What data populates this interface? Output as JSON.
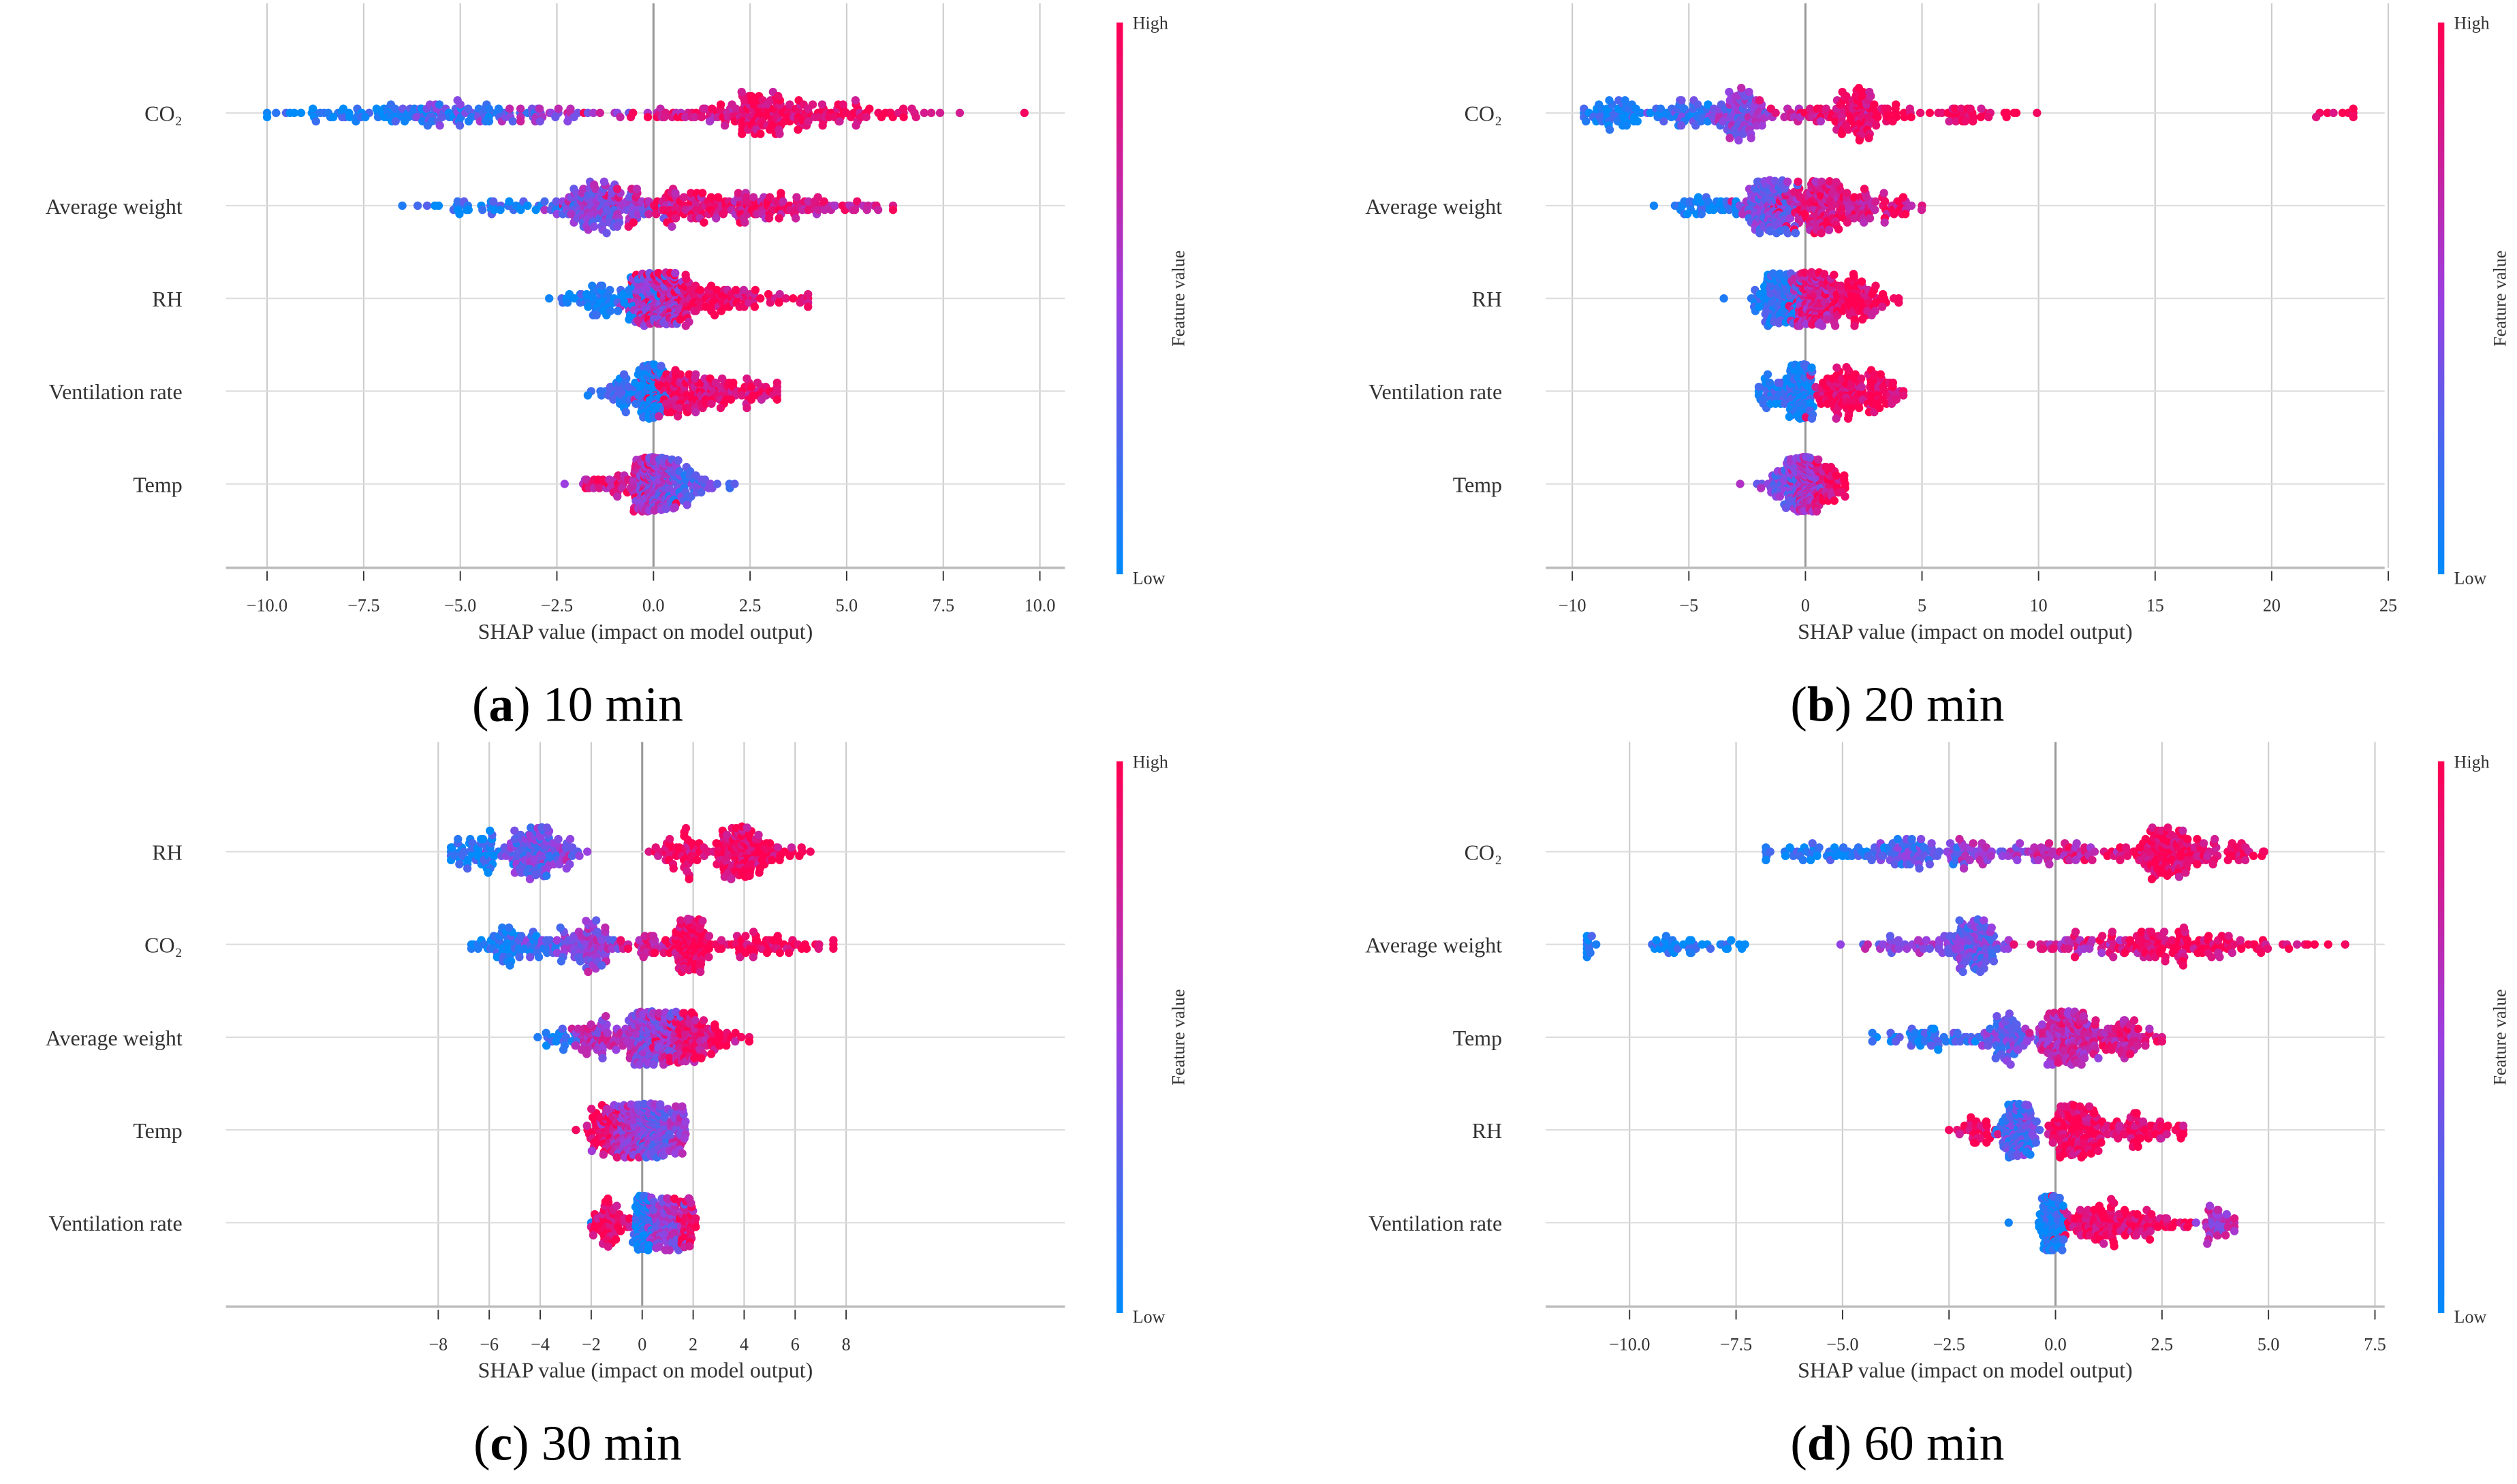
{
  "colors": {
    "low": "#008bfb",
    "mid": "#9b3fe0",
    "high": "#ff0052",
    "grid": "#cccccc",
    "axis": "#bbbbbb"
  },
  "chart_data": [
    {
      "type": "scatter",
      "subtype": "shap-beeswarm",
      "panel": "a",
      "caption_rest": "10 min",
      "xlabel": "SHAP value (impact on model output)",
      "colorbar": {
        "title": "Feature value",
        "high": "High",
        "low": "Low"
      },
      "xlim": [
        -10.5,
        10.5
      ],
      "ticks": [
        -10,
        -7.5,
        -5,
        -2.5,
        0,
        2.5,
        5,
        7.5,
        10
      ],
      "tick_labels": [
        "−10.0",
        "−7.5",
        "−5.0",
        "−2.5",
        "0.0",
        "2.5",
        "5.0",
        "7.5",
        "10.0"
      ],
      "features": [
        {
          "name": "CO₂",
          "range": [
            -10,
            9.6
          ],
          "clusters": [
            [
              -7,
              1.6,
              0.18,
              0.05
            ],
            [
              -4.8,
              1.0,
              0.17,
              0.3
            ],
            [
              -2.5,
              1.0,
              0.08,
              0.55
            ],
            [
              0.5,
              1.2,
              0.07,
              0.8
            ],
            [
              2.8,
              0.8,
              0.3,
              0.95
            ],
            [
              4.8,
              1.5,
              0.2,
              0.95
            ]
          ]
        },
        {
          "name": "Average weight",
          "range": [
            -6.5,
            6.2
          ],
          "clusters": [
            [
              -4,
              1.2,
              0.12,
              0.1
            ],
            [
              -1.3,
              0.7,
              0.35,
              0.45
            ],
            [
              1.2,
              1.2,
              0.35,
              0.85
            ],
            [
              4,
              1.1,
              0.18,
              0.8
            ]
          ]
        },
        {
          "name": "RH",
          "range": [
            -2.7,
            4.0
          ],
          "clusters": [
            [
              -1.2,
              0.6,
              0.2,
              0.05
            ],
            [
              0.1,
              0.35,
              0.4,
              0.55
            ],
            [
              0.8,
              0.6,
              0.3,
              0.95
            ],
            [
              2.5,
              0.8,
              0.1,
              0.95
            ]
          ]
        },
        {
          "name": "Ventilation rate",
          "range": [
            -1.7,
            3.2
          ],
          "clusters": [
            [
              -0.05,
              0.15,
              0.45,
              0.05
            ],
            [
              -0.8,
              0.4,
              0.1,
              0.1
            ],
            [
              0.6,
              0.5,
              0.3,
              0.9
            ],
            [
              2.2,
              0.6,
              0.15,
              0.9
            ]
          ]
        },
        {
          "name": "Temp",
          "range": [
            -2.3,
            2.1
          ],
          "clusters": [
            [
              0,
              0.2,
              0.6,
              0.5
            ],
            [
              -0.7,
              0.5,
              0.2,
              0.8
            ],
            [
              0.8,
              0.5,
              0.2,
              0.3
            ]
          ]
        }
      ]
    },
    {
      "type": "scatter",
      "subtype": "shap-beeswarm",
      "panel": "b",
      "caption_rest": "20 min",
      "xlabel": "SHAP value (impact on model output)",
      "colorbar": {
        "title": "Feature value",
        "high": "High",
        "low": "Low"
      },
      "xlim": [
        -11,
        26
      ],
      "ticks": [
        -10,
        -5,
        0,
        5,
        10,
        15,
        20,
        25
      ],
      "tick_labels": [
        "−10",
        "−5",
        "0",
        "5",
        "10",
        "15",
        "20",
        "25"
      ],
      "features": [
        {
          "name": "CO₂",
          "range": [
            -9.5,
            23.5
          ],
          "clusters": [
            [
              -8,
              1.0,
              0.15,
              0.05
            ],
            [
              -5,
              0.8,
              0.12,
              0.2
            ],
            [
              -2.8,
              0.6,
              0.25,
              0.45
            ],
            [
              0.5,
              1.0,
              0.08,
              0.8
            ],
            [
              2.5,
              0.8,
              0.28,
              0.95
            ],
            [
              7,
              1.5,
              0.1,
              0.97
            ],
            [
              22.5,
              0.6,
              0.02,
              1.0
            ]
          ]
        },
        {
          "name": "Average weight",
          "range": [
            -6.5,
            5.0
          ],
          "clusters": [
            [
              -4.5,
              1.0,
              0.1,
              0.05
            ],
            [
              -1.5,
              0.6,
              0.4,
              0.4
            ],
            [
              0.8,
              0.9,
              0.4,
              0.85
            ],
            [
              3.5,
              0.8,
              0.1,
              0.85
            ]
          ]
        },
        {
          "name": "RH",
          "range": [
            -3.5,
            4.0
          ],
          "clusters": [
            [
              -1.2,
              0.5,
              0.3,
              0.1
            ],
            [
              0.3,
              0.4,
              0.45,
              0.75
            ],
            [
              2,
              0.8,
              0.25,
              0.95
            ]
          ]
        },
        {
          "name": "Ventilation rate",
          "range": [
            -2.0,
            4.2
          ],
          "clusters": [
            [
              -0.2,
              0.25,
              0.55,
              0.05
            ],
            [
              -1.2,
              0.4,
              0.1,
              0.1
            ],
            [
              1.5,
              0.6,
              0.2,
              0.95
            ],
            [
              3,
              0.6,
              0.15,
              0.95
            ]
          ]
        },
        {
          "name": "Temp",
          "range": [
            -2.8,
            1.7
          ],
          "clusters": [
            [
              0,
              0.2,
              0.65,
              0.6
            ],
            [
              -0.8,
              0.5,
              0.2,
              0.4
            ],
            [
              0.9,
              0.4,
              0.15,
              0.9
            ]
          ]
        }
      ]
    },
    {
      "type": "scatter",
      "subtype": "shap-beeswarm",
      "panel": "c",
      "caption_rest": "30 min",
      "xlabel": "SHAP value (impact on model output)",
      "colorbar": {
        "title": "Feature value",
        "high": "High",
        "low": "Low"
      },
      "xlim": [
        -8.2,
        8.2
      ],
      "ticks": [
        -8,
        -6,
        -4,
        -2,
        0,
        2,
        4,
        6,
        8
      ],
      "tick_labels": [
        "−8",
        "−6",
        "−4",
        "−2",
        "0",
        "2",
        "4",
        "6",
        "8"
      ],
      "features": [
        {
          "name": "RH",
          "range": [
            -7.5,
            6.6
          ],
          "clusters": [
            [
              -6.5,
              0.5,
              0.15,
              0.05
            ],
            [
              -4.3,
              0.6,
              0.3,
              0.35
            ],
            [
              -3,
              0.3,
              0.05,
              0.5
            ],
            [
              1.5,
              0.8,
              0.15,
              0.95
            ],
            [
              3.9,
              0.6,
              0.3,
              0.93
            ],
            [
              5.5,
              0.5,
              0.05,
              0.95
            ]
          ]
        },
        {
          "name": "CO₂",
          "range": [
            -6.7,
            7.5
          ],
          "clusters": [
            [
              -5.3,
              0.8,
              0.15,
              0.05
            ],
            [
              -3.5,
              0.8,
              0.12,
              0.3
            ],
            [
              -2,
              0.5,
              0.18,
              0.5
            ],
            [
              0,
              0.6,
              0.08,
              0.8
            ],
            [
              1.9,
              0.4,
              0.3,
              0.95
            ],
            [
              4.5,
              1.3,
              0.17,
              0.97
            ]
          ]
        },
        {
          "name": "Average weight",
          "range": [
            -4.1,
            4.2
          ],
          "clusters": [
            [
              -3.3,
              0.3,
              0.05,
              0.1
            ],
            [
              -1.5,
              0.6,
              0.15,
              0.6
            ],
            [
              0.3,
              0.5,
              0.45,
              0.5
            ],
            [
              1.5,
              0.6,
              0.25,
              0.85
            ],
            [
              3,
              0.6,
              0.1,
              0.9
            ]
          ]
        },
        {
          "name": "Temp",
          "range": [
            -2.6,
            1.7
          ],
          "clusters": [
            [
              -1.5,
              0.4,
              0.15,
              0.95
            ],
            [
              -0.5,
              0.4,
              0.3,
              0.6
            ],
            [
              0.4,
              0.3,
              0.45,
              0.4
            ],
            [
              1.4,
              0.2,
              0.1,
              0.6
            ]
          ]
        },
        {
          "name": "Ventilation rate",
          "range": [
            -2.0,
            2.1
          ],
          "clusters": [
            [
              0,
              0.15,
              0.5,
              0.05
            ],
            [
              -1.3,
              0.4,
              0.15,
              0.95
            ],
            [
              0.8,
              0.4,
              0.25,
              0.5
            ],
            [
              1.8,
              0.2,
              0.1,
              0.9
            ]
          ]
        }
      ]
    },
    {
      "type": "scatter",
      "subtype": "shap-beeswarm",
      "panel": "d",
      "caption_rest": "60 min",
      "xlabel": "SHAP value (impact on model output)",
      "colorbar": {
        "title": "Feature value",
        "high": "High",
        "low": "Low"
      },
      "xlim": [
        -11.5,
        7.5
      ],
      "ticks": [
        -10,
        -7.5,
        -5,
        -2.5,
        0,
        2.5,
        5,
        7.5
      ],
      "tick_labels": [
        "−10.0",
        "−7.5",
        "−5.0",
        "−2.5",
        "0.0",
        "2.5",
        "5.0",
        "7.5"
      ],
      "features": [
        {
          "name": "CO₂",
          "range": [
            -6.8,
            4.9
          ],
          "clusters": [
            [
              -5.5,
              0.8,
              0.12,
              0.1
            ],
            [
              -3.4,
              0.6,
              0.2,
              0.3
            ],
            [
              -1.5,
              0.7,
              0.12,
              0.5
            ],
            [
              0.3,
              0.6,
              0.12,
              0.75
            ],
            [
              2.7,
              0.6,
              0.38,
              0.95
            ],
            [
              4.2,
              0.4,
              0.06,
              0.95
            ]
          ]
        },
        {
          "name": "Average weight",
          "range": [
            -11,
            6.8
          ],
          "clusters": [
            [
              -11,
              0.1,
              0.03,
              0.05
            ],
            [
              -8.5,
              0.6,
              0.1,
              0.05
            ],
            [
              -3.5,
              0.7,
              0.1,
              0.5
            ],
            [
              -1.9,
              0.4,
              0.3,
              0.35
            ],
            [
              0.5,
              0.7,
              0.12,
              0.75
            ],
            [
              2.8,
              0.9,
              0.3,
              0.95
            ],
            [
              5.3,
              0.6,
              0.05,
              0.95
            ]
          ]
        },
        {
          "name": "Temp",
          "range": [
            -4.3,
            2.5
          ],
          "clusters": [
            [
              -3,
              0.6,
              0.12,
              0.1
            ],
            [
              -1.2,
              0.4,
              0.2,
              0.35
            ],
            [
              0.3,
              0.35,
              0.5,
              0.7
            ],
            [
              1.6,
              0.4,
              0.18,
              0.8
            ]
          ]
        },
        {
          "name": "RH",
          "range": [
            -2.5,
            3.0
          ],
          "clusters": [
            [
              -1.9,
              0.3,
              0.08,
              0.95
            ],
            [
              -0.9,
              0.2,
              0.4,
              0.25
            ],
            [
              0.5,
              0.4,
              0.35,
              0.95
            ],
            [
              2,
              0.5,
              0.17,
              0.95
            ]
          ]
        },
        {
          "name": "Ventilation rate",
          "range": [
            -1.1,
            4.2
          ],
          "clusters": [
            [
              -0.1,
              0.12,
              0.55,
              0.05
            ],
            [
              1,
              0.5,
              0.25,
              0.95
            ],
            [
              2.3,
              0.4,
              0.1,
              0.95
            ],
            [
              3.8,
              0.3,
              0.1,
              0.6
            ]
          ]
        }
      ]
    }
  ]
}
